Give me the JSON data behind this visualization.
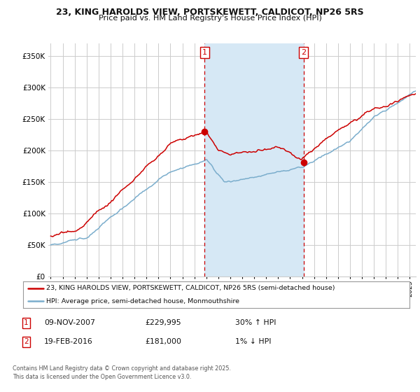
{
  "title_line1": "23, KING HAROLDS VIEW, PORTSKEWETT, CALDICOT, NP26 5RS",
  "title_line2": "Price paid vs. HM Land Registry's House Price Index (HPI)",
  "ylabel_ticks": [
    "£0",
    "£50K",
    "£100K",
    "£150K",
    "£200K",
    "£250K",
    "£300K",
    "£350K"
  ],
  "ytick_values": [
    0,
    50000,
    100000,
    150000,
    200000,
    250000,
    300000,
    350000
  ],
  "ylim": [
    0,
    370000
  ],
  "xlim_start": 1994.8,
  "xlim_end": 2025.5,
  "purchase1_date": 2007.86,
  "purchase1_price": 229995,
  "purchase2_date": 2016.12,
  "purchase2_price": 181000,
  "legend_line1": "23, KING HAROLDS VIEW, PORTSKEWETT, CALDICOT, NP26 5RS (semi-detached house)",
  "legend_line2": "HPI: Average price, semi-detached house, Monmouthshire",
  "table_row1": [
    "1",
    "09-NOV-2007",
    "£229,995",
    "30% ↑ HPI"
  ],
  "table_row2": [
    "2",
    "19-FEB-2016",
    "£181,000",
    "1% ↓ HPI"
  ],
  "footnote": "Contains HM Land Registry data © Crown copyright and database right 2025.\nThis data is licensed under the Open Government Licence v3.0.",
  "color_red": "#cc0000",
  "color_blue": "#7aadcc",
  "color_shading": "#d6e8f5",
  "background_color": "#ffffff",
  "grid_color": "#cccccc"
}
